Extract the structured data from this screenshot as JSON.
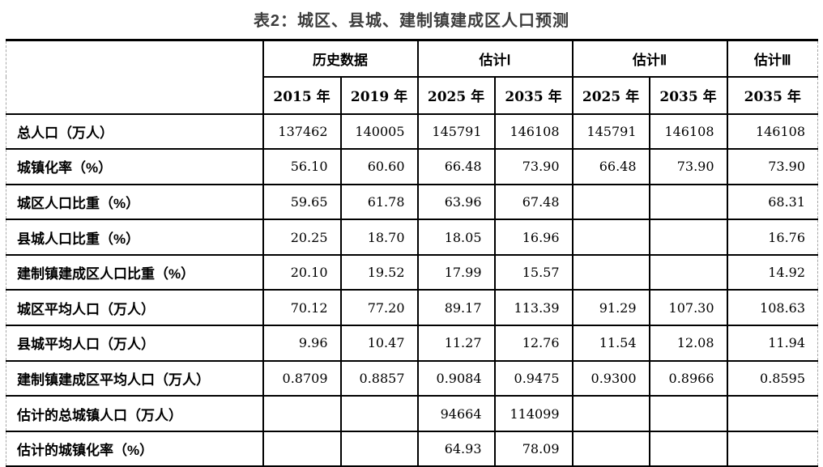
{
  "title": "表2：城区、县城、建制镇建成区人口预测",
  "table": {
    "corner_label": "",
    "groups": [
      {
        "label": "历史数据",
        "span": 2
      },
      {
        "label": "估计Ⅰ",
        "span": 2
      },
      {
        "label": "估计Ⅱ",
        "span": 2
      },
      {
        "label": "估计Ⅲ",
        "span": 1
      }
    ],
    "year_headers": [
      "2015 年",
      "2019 年",
      "2025 年",
      "2035 年",
      "2025 年",
      "2035 年",
      "2035 年"
    ],
    "rows": [
      {
        "label": "总人口（万人）",
        "values": [
          "137462",
          "140005",
          "145791",
          "146108",
          "145791",
          "146108",
          "146108"
        ]
      },
      {
        "label": "城镇化率（%）",
        "values": [
          "56.10",
          "60.60",
          "66.48",
          "73.90",
          "66.48",
          "73.90",
          "73.90"
        ]
      },
      {
        "label": "城区人口比重（%）",
        "values": [
          "59.65",
          "61.78",
          "63.96",
          "67.48",
          "",
          "",
          "68.31"
        ]
      },
      {
        "label": "县城人口比重（%）",
        "values": [
          "20.25",
          "18.70",
          "18.05",
          "16.96",
          "",
          "",
          "16.76"
        ]
      },
      {
        "label": "建制镇建成区人口比重（%）",
        "values": [
          "20.10",
          "19.52",
          "17.99",
          "15.57",
          "",
          "",
          "14.92"
        ]
      },
      {
        "label": "城区平均人口（万人）",
        "values": [
          "70.12",
          "77.20",
          "89.17",
          "113.39",
          "91.29",
          "107.30",
          "108.63"
        ]
      },
      {
        "label": "县城平均人口（万人）",
        "values": [
          "9.96",
          "10.47",
          "11.27",
          "12.76",
          "11.54",
          "12.08",
          "11.94"
        ]
      },
      {
        "label": "建制镇建成区平均人口（万人）",
        "values": [
          "0.8709",
          "0.8857",
          "0.9084",
          "0.9475",
          "0.9300",
          "0.8966",
          "0.8595"
        ]
      },
      {
        "label": "估计的总城镇人口（万人）",
        "values": [
          "",
          "",
          "94664",
          "114099",
          "",
          "",
          ""
        ]
      },
      {
        "label": "估计的城镇化率（%）",
        "values": [
          "",
          "",
          "64.93",
          "78.09",
          "",
          "",
          ""
        ]
      }
    ],
    "colors": {
      "title_text": "#3d3d3d",
      "body_text": "#000000",
      "grid_line": "#000000",
      "page_edge_dash": "#a6a6a6",
      "background": "#ffffff"
    }
  }
}
